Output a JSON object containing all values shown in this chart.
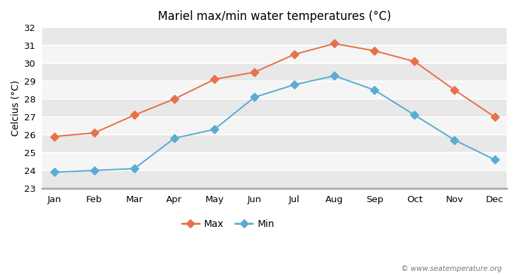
{
  "title": "Mariel max/min water temperatures (°C)",
  "ylabel": "Celcius (°C)",
  "months": [
    "Jan",
    "Feb",
    "Mar",
    "Apr",
    "May",
    "Jun",
    "Jul",
    "Aug",
    "Sep",
    "Oct",
    "Nov",
    "Dec"
  ],
  "max_values": [
    25.9,
    26.1,
    27.1,
    28.0,
    29.1,
    29.5,
    30.5,
    31.1,
    30.7,
    30.1,
    28.5,
    27.0
  ],
  "min_values": [
    23.9,
    24.0,
    24.1,
    25.8,
    26.3,
    28.1,
    28.8,
    29.3,
    28.5,
    27.1,
    25.7,
    24.6
  ],
  "max_color": "#e8714a",
  "min_color": "#5bacd4",
  "bg_color": "#ffffff",
  "plot_bg_color": "#e8e8e8",
  "band_color_light": "#f0f0f0",
  "band_color_white": "#e0e0e0",
  "ylim_min": 23,
  "ylim_max": 32,
  "yticks": [
    23,
    24,
    25,
    26,
    27,
    28,
    29,
    30,
    31,
    32
  ],
  "watermark": "© www.seatemperature.org",
  "legend_labels": [
    "Max",
    "Min"
  ]
}
